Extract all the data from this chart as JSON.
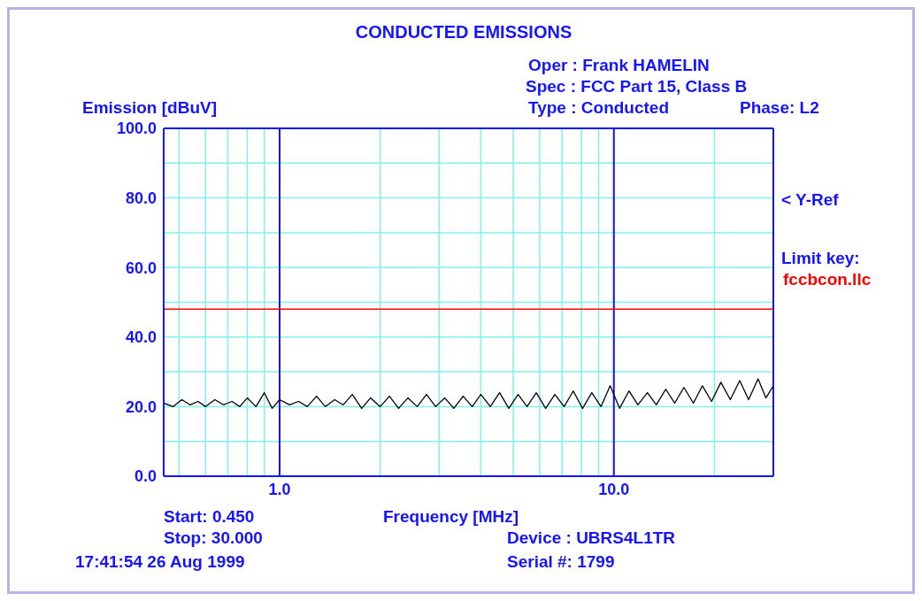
{
  "chart_data": {
    "type": "line",
    "title": "CONDUCTED EMISSIONS",
    "xlabel": "Frequency [MHz]",
    "ylabel": "Emission [dBuV]",
    "annotations": [
      "Oper : Frank HAMELIN",
      "Spec : FCC Part 15, Class B",
      "Type : Conducted",
      "Phase: L2",
      "< Y-Ref",
      "Limit key:",
      "fccbcon.llc",
      "Start: 0.450",
      "Stop: 30.000",
      "17:41:54 26 Aug 1999",
      "Device : UBRS4L1TR",
      "Serial #: 1799"
    ],
    "log": "x",
    "grid": true,
    "xlim": [
      0.45,
      30
    ],
    "ylim": [
      0,
      100
    ],
    "xticks": [
      {
        "value": 0.5,
        "label": null
      },
      {
        "value": 0.6,
        "label": null
      },
      {
        "value": 0.7,
        "label": null
      },
      {
        "value": 0.8,
        "label": null
      },
      {
        "value": 0.9,
        "label": null
      },
      {
        "value": 1,
        "label": "1.0"
      },
      {
        "value": 2,
        "label": null
      },
      {
        "value": 3,
        "label": null
      },
      {
        "value": 4,
        "label": null
      },
      {
        "value": 5,
        "label": null
      },
      {
        "value": 6,
        "label": null
      },
      {
        "value": 7,
        "label": null
      },
      {
        "value": 8,
        "label": null
      },
      {
        "value": 9,
        "label": null
      },
      {
        "value": 10,
        "label": "10.0"
      },
      {
        "value": 20,
        "label": null
      }
    ],
    "yticks": [
      {
        "value": 0,
        "label": "0.0"
      },
      {
        "value": 10,
        "label": null
      },
      {
        "value": 20,
        "label": "20.0"
      },
      {
        "value": 30,
        "label": null
      },
      {
        "value": 40,
        "label": "40.0"
      },
      {
        "value": 50,
        "label": null
      },
      {
        "value": 60,
        "label": "60.0"
      },
      {
        "value": 70,
        "label": null
      },
      {
        "value": 80,
        "label": "80.0"
      },
      {
        "value": 90,
        "label": null
      },
      {
        "value": 100,
        "label": "100.0"
      }
    ],
    "ref_lines": [
      {
        "axis": "y",
        "value": 48,
        "color": "#ff0000"
      }
    ],
    "x": [
      0.45,
      0.48,
      0.51,
      0.54,
      0.57,
      0.6,
      0.64,
      0.68,
      0.72,
      0.76,
      0.8,
      0.85,
      0.9,
      0.95,
      1.0,
      1.07,
      1.14,
      1.21,
      1.29,
      1.37,
      1.46,
      1.55,
      1.65,
      1.76,
      1.87,
      2.0,
      2.13,
      2.27,
      2.42,
      2.58,
      2.75,
      2.93,
      3.12,
      3.32,
      3.54,
      3.77,
      4.0,
      4.27,
      4.55,
      4.85,
      5.17,
      5.5,
      5.86,
      6.25,
      6.66,
      7.1,
      7.56,
      8.06,
      8.59,
      9.15,
      9.75,
      10.4,
      11.1,
      11.8,
      12.6,
      13.4,
      14.3,
      15.2,
      16.2,
      17.3,
      18.4,
      19.6,
      20.9,
      22.3,
      23.8,
      25.3,
      27,
      28.5,
      30
    ],
    "series": [
      {
        "color": "#000000",
        "values": [
          21,
          20,
          22,
          20.5,
          21.5,
          20,
          22,
          20.5,
          21.5,
          20,
          22.5,
          20,
          24,
          19.5,
          22,
          20.5,
          21.5,
          20,
          23,
          20,
          22,
          20.5,
          23.5,
          19.5,
          22.5,
          20,
          23,
          19.5,
          22.5,
          20,
          23.5,
          20,
          22.5,
          19.5,
          23,
          20,
          23.5,
          20,
          24,
          19.5,
          23.5,
          20,
          24,
          19.5,
          23.5,
          20,
          24.5,
          19.5,
          24,
          20,
          26,
          19.5,
          24.5,
          20.5,
          24,
          20.5,
          25,
          21,
          25.5,
          21,
          26,
          21.5,
          27,
          22,
          27.5,
          22,
          28,
          22.5,
          26
        ]
      }
    ]
  }
}
